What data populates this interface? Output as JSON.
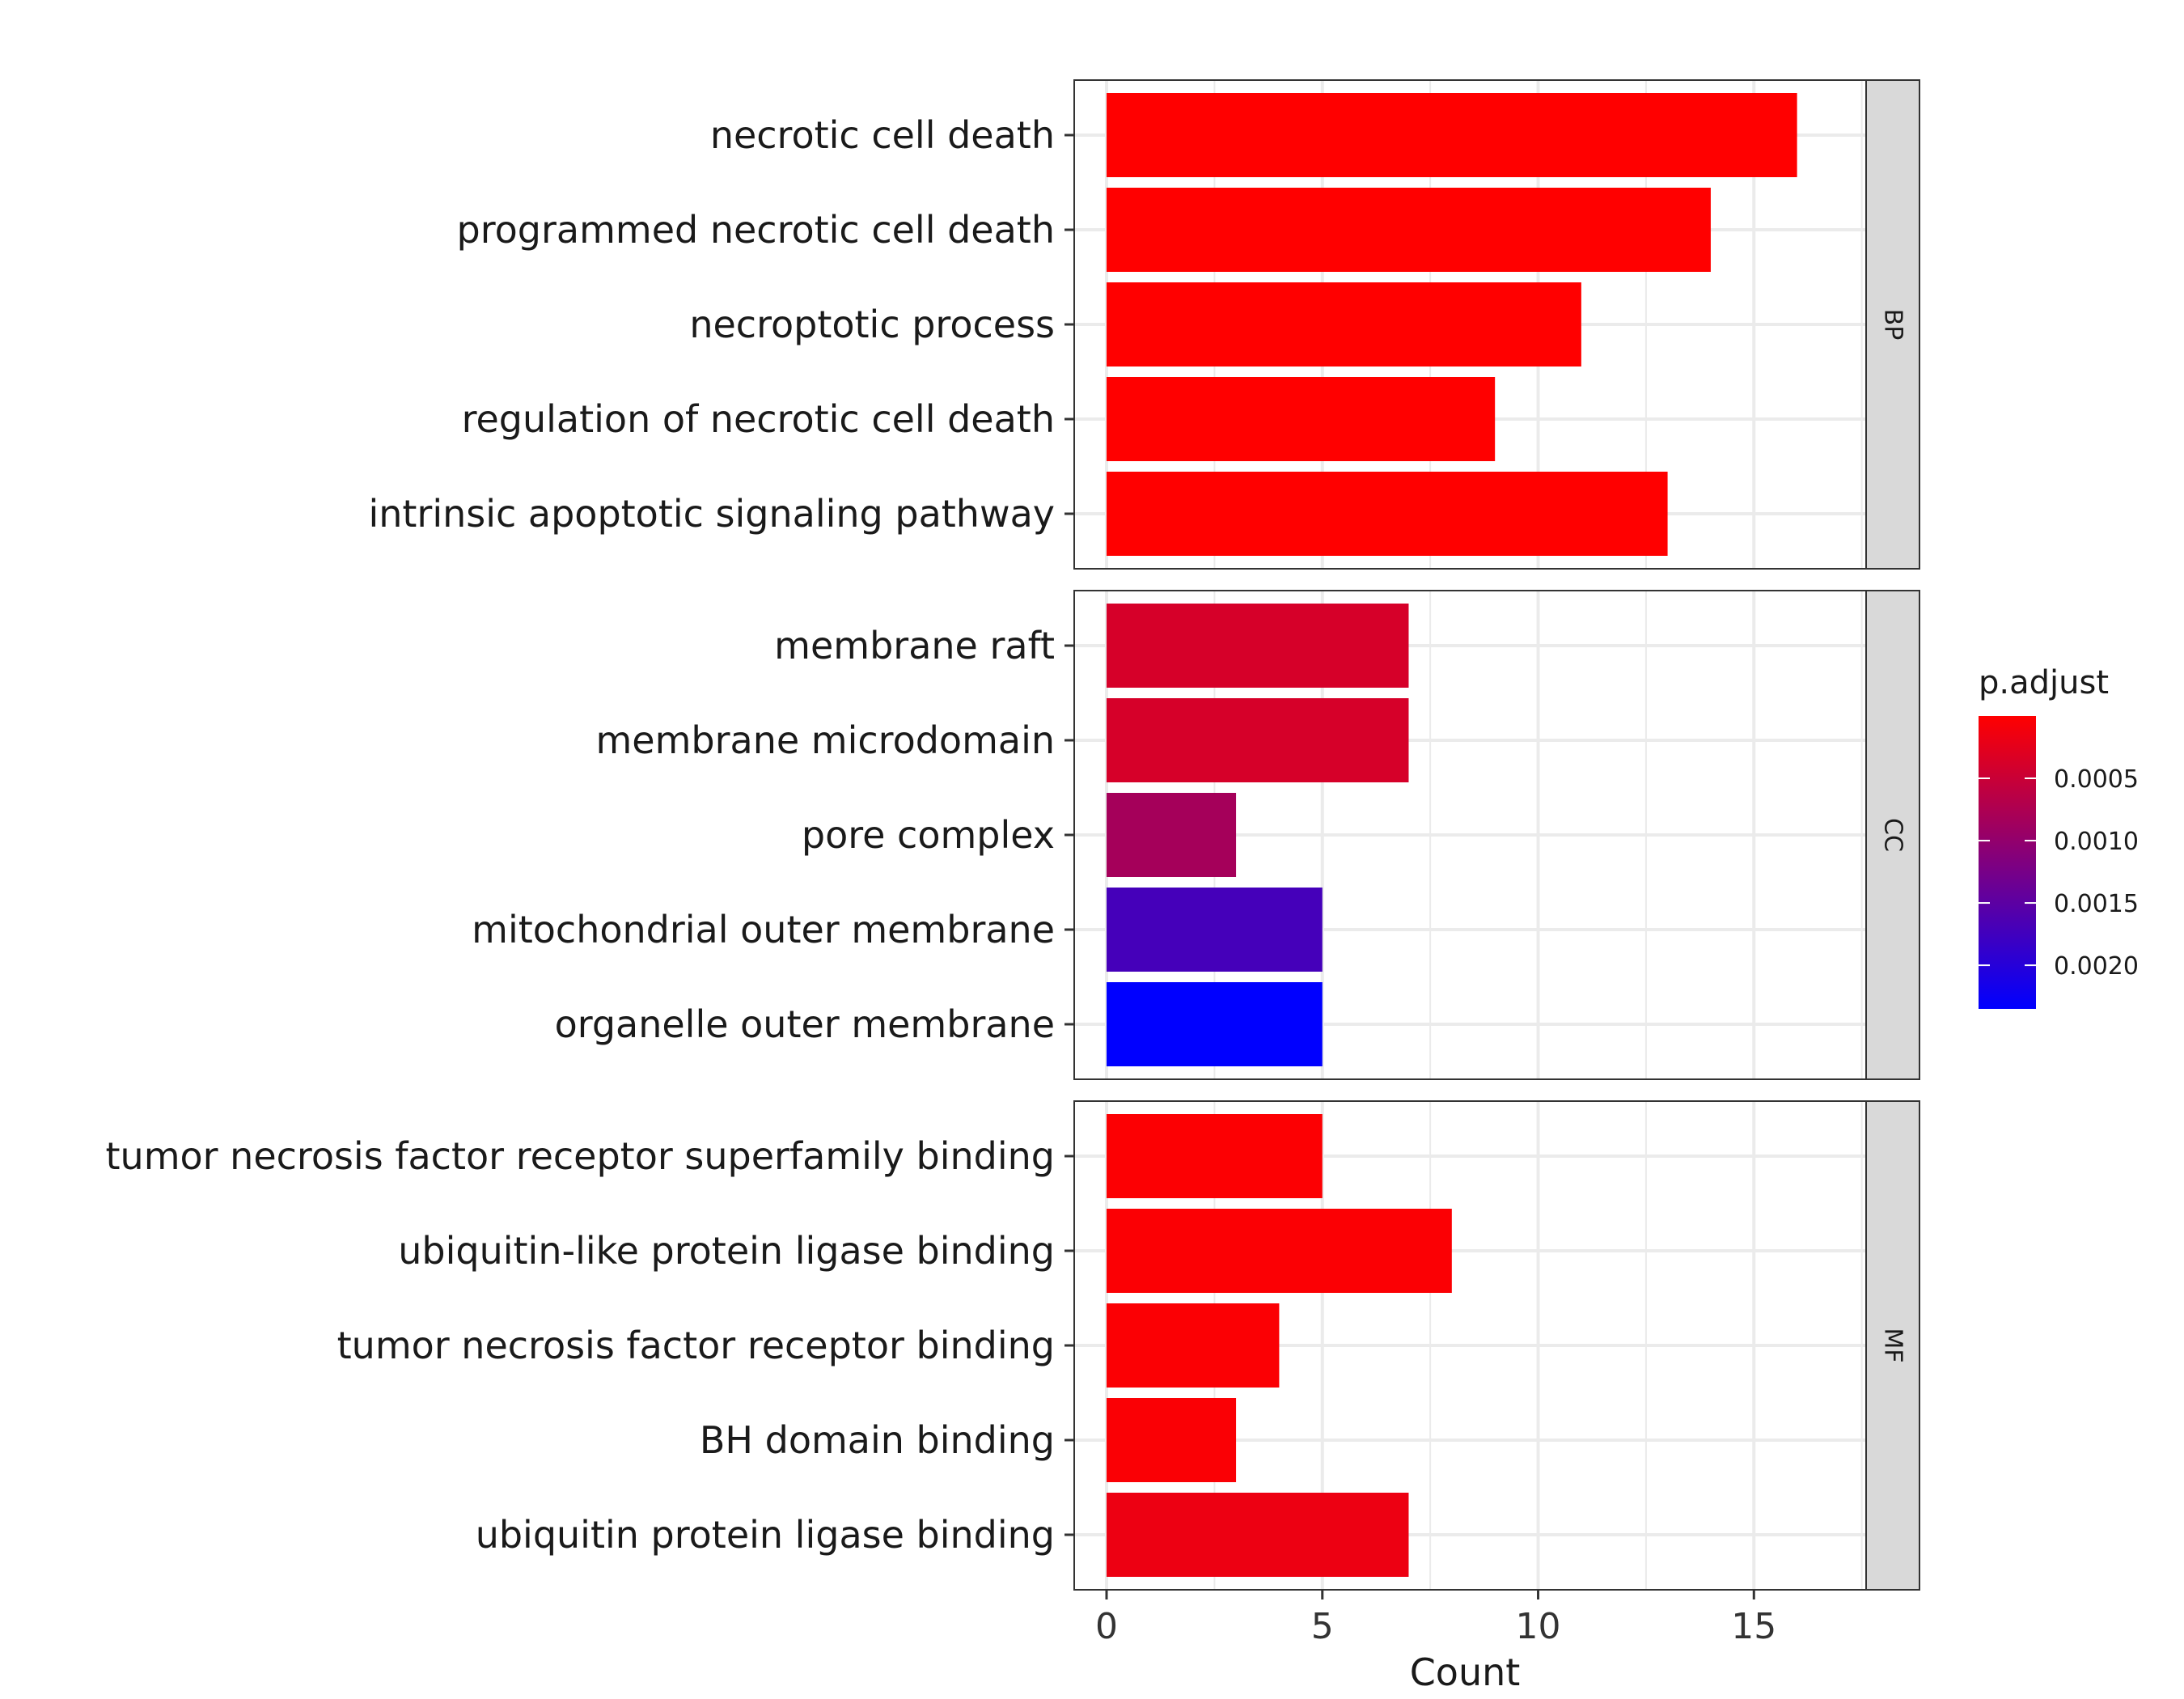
{
  "chart_data": {
    "type": "bar",
    "orientation": "horizontal",
    "xlabel": "Count",
    "ylabel": "",
    "xlim": [
      -0.75,
      17.6
    ],
    "x_ticks": [
      0,
      5,
      10,
      15
    ],
    "x_tick_labels": [
      "0",
      "5",
      "10",
      "15"
    ],
    "grid": true,
    "facets": [
      {
        "name": "BP",
        "categories": [
          "necrotic cell death",
          "programmed necrotic cell death",
          "necroptotic process",
          "regulation of necrotic cell death",
          "intrinsic apoptotic signaling pathway"
        ],
        "values": [
          16,
          14,
          11,
          9,
          13
        ],
        "p_adjust": [
          1e-06,
          1e-06,
          1e-06,
          2e-06,
          3e-06
        ]
      },
      {
        "name": "CC",
        "categories": [
          "membrane raft",
          "membrane microdomain",
          "pore complex",
          "mitochondrial outer membrane",
          "organelle outer membrane"
        ],
        "values": [
          7,
          7,
          3,
          5,
          5
        ],
        "p_adjust": [
          0.00038,
          0.00038,
          0.00083,
          0.00171,
          0.00235
        ]
      },
      {
        "name": "MF",
        "categories": [
          "tumor necrosis factor receptor superfamily binding",
          "ubiquitin-like protein ligase binding",
          "tumor necrosis factor receptor binding",
          "BH domain binding",
          "ubiquitin protein ligase binding"
        ],
        "values": [
          5,
          8,
          4,
          3,
          7
        ],
        "p_adjust": [
          3e-05,
          4e-05,
          4e-05,
          5e-05,
          0.00017
        ]
      }
    ],
    "legend": {
      "title": "p.adjust",
      "position": "right",
      "min": 0.0,
      "max": 0.00235,
      "low_color": "#ff0000",
      "high_color": "#0000ff",
      "ticks": [
        0.0005,
        0.001,
        0.0015,
        0.002
      ],
      "tick_labels": [
        "0.0005",
        "0.0010",
        "0.0015",
        "0.0020"
      ]
    },
    "colors": {
      "panel_border": "#333333",
      "grid": "#ebebeb",
      "strip_fill": "#d9d9d9"
    }
  }
}
